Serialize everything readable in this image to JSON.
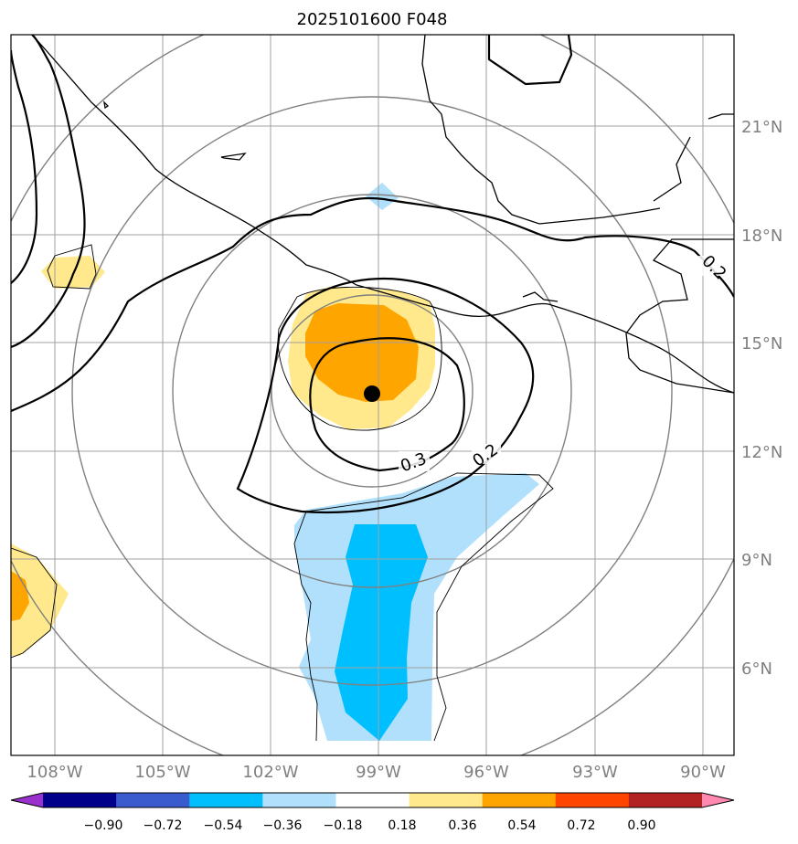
{
  "title": "2025101600 F048",
  "map": {
    "lon_labels": [
      "108°W",
      "105°W",
      "102°W",
      "99°W",
      "96°W",
      "93°W",
      "90°W"
    ],
    "lat_labels": [
      "21°N",
      "18°N",
      "15°N",
      "12°N",
      "9°N",
      "6°N"
    ],
    "contour_labels": [
      "0.2",
      "0.3",
      "0.2"
    ],
    "colors": {
      "coastline": "#000000",
      "gridline": "#a0a0a0",
      "range_ring": "#808080",
      "tick_label": "#808080"
    }
  },
  "colorbar": {
    "labels": [
      "−0.90",
      "−0.72",
      "−0.54",
      "−0.36",
      "−0.18",
      "0.18",
      "0.36",
      "0.54",
      "0.72",
      "0.90"
    ],
    "colors": [
      "#9932cc",
      "#00008b",
      "#3a5bcd",
      "#00bfff",
      "#b0e0fb",
      "#ffffff",
      "#ffe98c",
      "#ffa500",
      "#ff4500",
      "#b22222",
      "#ff88b0"
    ]
  }
}
